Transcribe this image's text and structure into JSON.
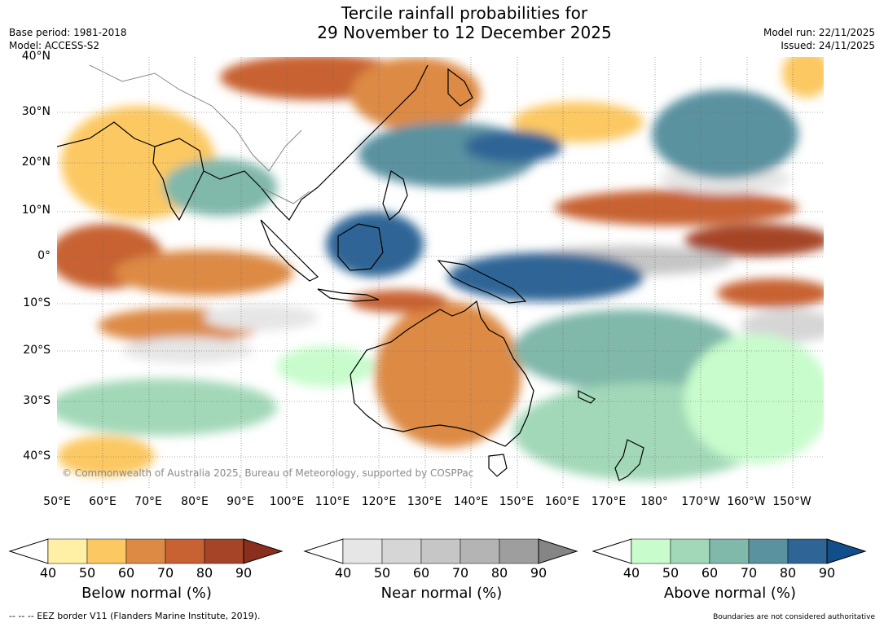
{
  "title": {
    "line1": "Tercile rainfall probabilities for",
    "line2": "29 November to 12 December 2025"
  },
  "meta_left": {
    "base_period": "Base period: 1981-2018",
    "model": "Model: ACCESS-S2"
  },
  "meta_right": {
    "model_run": "Model run: 22/11/2025",
    "issued": "Issued: 24/11/2025"
  },
  "map": {
    "lat_labels": [
      "40°N",
      "30°N",
      "20°N",
      "10°N",
      "0°",
      "10°S",
      "20°S",
      "30°S",
      "40°S"
    ],
    "lon_labels": [
      "50°E",
      "60°E",
      "70°E",
      "80°E",
      "90°E",
      "100°E",
      "110°E",
      "120°E",
      "130°E",
      "140°E",
      "150°E",
      "160°E",
      "170°E",
      "180°",
      "170°W",
      "160°W",
      "150°W"
    ],
    "copyright": "© Commonwealth of Australia 2025, Bureau of Meteorology, supported by COSPPac"
  },
  "colorbars": [
    {
      "title": "Below normal (%)",
      "ticks": [
        "40",
        "50",
        "60",
        "70",
        "80",
        "90"
      ],
      "colors": [
        "#fff0a6",
        "#fcc862",
        "#dd8a45",
        "#c86233",
        "#a64428",
        "#8a2f1e"
      ]
    },
    {
      "title": "Near normal (%)",
      "ticks": [
        "40",
        "50",
        "60",
        "70",
        "80",
        "90"
      ],
      "colors": [
        "#e6e6e6",
        "#d6d6d6",
        "#c6c6c6",
        "#b4b4b4",
        "#9e9e9e",
        "#858585"
      ]
    },
    {
      "title": "Above normal (%)",
      "ticks": [
        "40",
        "50",
        "60",
        "70",
        "80",
        "90"
      ],
      "colors": [
        "#c8fccc",
        "#a2d8b8",
        "#80b8aa",
        "#5a92a0",
        "#2f6596",
        "#124e8a"
      ]
    }
  ],
  "footer": {
    "left": "--  --  -- EEZ border V11 (Flanders Marine Institute, 2019).",
    "right": "Boundaries are not considered authoritative"
  }
}
